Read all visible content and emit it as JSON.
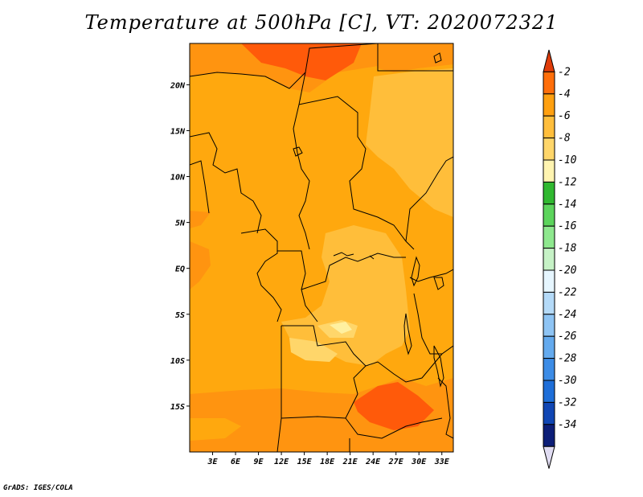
{
  "title": "Temperature at 500hPa [C], VT: 2020072321",
  "credit": "GrADS: IGES/COLA",
  "map": {
    "lon_range": [
      0,
      34.5
    ],
    "lat_range": [
      -20,
      24.5
    ],
    "lon_ticks": [
      "3E",
      "6E",
      "9E",
      "12E",
      "15E",
      "18E",
      "21E",
      "24E",
      "27E",
      "30E",
      "33E"
    ],
    "lat_ticks": [
      "20N",
      "15N",
      "10N",
      "5N",
      "EQ",
      "5S",
      "10S",
      "15S"
    ],
    "field_colors": {
      "warmest": "#ff5a0a",
      "warm": "#ff9410",
      "base": "#ffa80e",
      "mid": "#ffbe3a",
      "cool": "#ffd66a",
      "coolest": "#fff0a0"
    }
  },
  "colorbar": {
    "levels": [
      "-2",
      "-4",
      "-6",
      "-8",
      "-10",
      "-12",
      "-14",
      "-16",
      "-18",
      "-20",
      "-22",
      "-24",
      "-26",
      "-28",
      "-30",
      "-32",
      "-34"
    ],
    "colors": [
      "#e03c0a",
      "#ff6e0a",
      "#ffa010",
      "#ffbe3c",
      "#ffd66a",
      "#fff4b0",
      "#30b830",
      "#5cd45c",
      "#8ee88e",
      "#c6f2c6",
      "#e6f6ff",
      "#b4daf8",
      "#8ec4f4",
      "#64aaee",
      "#3c8ce6",
      "#1e6ed8",
      "#1046b4",
      "#0c1e78",
      "#e0dcf2"
    ]
  }
}
